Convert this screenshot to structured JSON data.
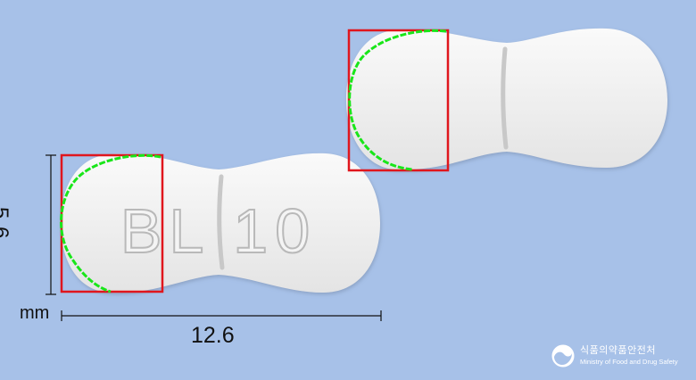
{
  "dimensions": {
    "height_value": "5.6",
    "unit": "mm",
    "width_value": "12.6"
  },
  "tablet": {
    "imprint": "BL 10",
    "color": "#f3f3f3"
  },
  "logo": {
    "korean": "식품의약품안전처",
    "english": "Ministry of Food and Drug Safety"
  },
  "colors": {
    "background": "#a7c1e8",
    "highlight_box": "#e0161d",
    "contour": "#19e619",
    "dimension_line": "#111111"
  }
}
